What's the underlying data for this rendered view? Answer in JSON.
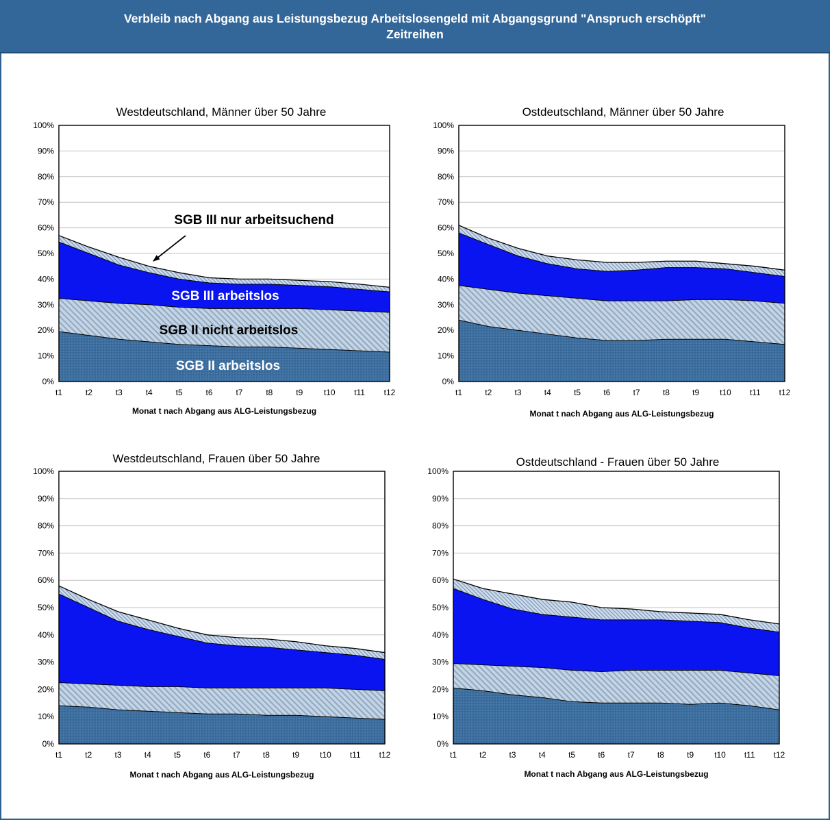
{
  "header": {
    "title_line1": "Verbleib nach Abgang aus Leistungsbezug Arbeitslosengeld mit Abgangsgrund \"Anspruch erschöpft\"",
    "title_line2": "Zeitreihen"
  },
  "colors": {
    "header_bg": "#336699",
    "sgb2_arbeitslos": "#3a6d9e",
    "sgb2_nicht_arbeitslos": "#b3c6d9",
    "sgb3_arbeitslos": "#0a14f0",
    "sgb3_nur_arbeitsuchend": "#b8cbe0"
  },
  "annotations": {
    "sgb3_nur_arbeitsuchend": "SGB III nur arbeitsuchend",
    "sgb3_arbeitslos": "SGB III arbeitslos",
    "sgb2_nicht_arbeitslos": "SGB II nicht arbeitslos",
    "sgb2_arbeitslos": "SGB II arbeitslos"
  },
  "chart_data": [
    {
      "type": "area",
      "stacked": true,
      "title": "Westdeutschland, Männer über 50 Jahre",
      "xlabel": "Monat t nach Abgang aus ALG-Leistungsbezug",
      "categories": [
        "t1",
        "t2",
        "t3",
        "t4",
        "t5",
        "t6",
        "t7",
        "t8",
        "t9",
        "t10",
        "t11",
        "t12"
      ],
      "yticks": [
        "0%",
        "10%",
        "20%",
        "30%",
        "40%",
        "50%",
        "60%",
        "70%",
        "80%",
        "90%",
        "100%"
      ],
      "ylim": [
        0,
        100
      ],
      "series": [
        {
          "name": "SGB II arbeitslos",
          "values": [
            19.5,
            18,
            16.5,
            15.5,
            14.5,
            14,
            13.5,
            13.5,
            13,
            12.5,
            12,
            11.5
          ]
        },
        {
          "name": "SGB II nicht arbeitslos",
          "values": [
            13,
            13.5,
            14,
            14.5,
            14.5,
            14.5,
            15,
            15,
            15.5,
            15.5,
            15.5,
            15.5
          ]
        },
        {
          "name": "SGB III arbeitslos",
          "values": [
            22,
            18.5,
            15,
            12.5,
            11,
            10,
            9.5,
            9.5,
            9,
            9,
            8.5,
            8
          ]
        },
        {
          "name": "SGB III nur arbeitsuchend",
          "values": [
            2.5,
            2.5,
            3,
            2.5,
            2.5,
            2,
            2,
            2,
            2,
            2,
            2,
            1.8
          ]
        }
      ],
      "labels_shown": true
    },
    {
      "type": "area",
      "stacked": true,
      "title": "Ostdeutschland, Männer über 50 Jahre",
      "xlabel": "Monat t nach Abgang aus ALG-Leistungsbezug",
      "categories": [
        "t1",
        "t2",
        "t3",
        "t4",
        "t5",
        "t6",
        "t7",
        "t8",
        "t9",
        "t10",
        "t11",
        "t12"
      ],
      "yticks": [
        "0%",
        "10%",
        "20%",
        "30%",
        "40%",
        "50%",
        "60%",
        "70%",
        "80%",
        "90%",
        "100%"
      ],
      "ylim": [
        0,
        100
      ],
      "series": [
        {
          "name": "SGB II arbeitslos",
          "values": [
            24,
            21.5,
            20,
            18.5,
            17,
            16,
            16,
            16.5,
            16.5,
            16.5,
            15.5,
            14.5
          ]
        },
        {
          "name": "SGB II nicht arbeitslos",
          "values": [
            13.5,
            14.5,
            14.5,
            15,
            15.5,
            15.5,
            15.5,
            15,
            15.5,
            15.5,
            16,
            16
          ]
        },
        {
          "name": "SGB III arbeitslos",
          "values": [
            20.5,
            17.5,
            14.5,
            12.5,
            11.5,
            11.5,
            12,
            13,
            12.5,
            12,
            11,
            10.5
          ]
        },
        {
          "name": "SGB III nur arbeitsuchend",
          "values": [
            3,
            2.5,
            3,
            3,
            3.5,
            3.5,
            3,
            2.5,
            2.5,
            2,
            2.5,
            2.5
          ]
        }
      ],
      "labels_shown": false
    },
    {
      "type": "area",
      "stacked": true,
      "title": "Westdeutschland, Frauen über 50 Jahre",
      "xlabel": "Monat t nach Abgang aus ALG-Leistungsbezug",
      "categories": [
        "t1",
        "t2",
        "t3",
        "t4",
        "t5",
        "t6",
        "t7",
        "t8",
        "t9",
        "t10",
        "t11",
        "t12"
      ],
      "yticks": [
        "0%",
        "10%",
        "20%",
        "30%",
        "40%",
        "50%",
        "60%",
        "70%",
        "80%",
        "90%",
        "100%"
      ],
      "ylim": [
        0,
        100
      ],
      "series": [
        {
          "name": "SGB II arbeitslos",
          "values": [
            14,
            13.5,
            12.5,
            12,
            11.5,
            11,
            11,
            10.5,
            10.5,
            10,
            9.5,
            9
          ]
        },
        {
          "name": "SGB II nicht arbeitslos",
          "values": [
            8.5,
            8.5,
            9,
            9,
            9.5,
            9.5,
            9.5,
            10,
            10,
            10.5,
            10.5,
            10.5
          ]
        },
        {
          "name": "SGB III arbeitslos",
          "values": [
            32.5,
            28,
            23.5,
            21,
            18.5,
            16.5,
            15.5,
            15,
            14,
            13,
            12.5,
            11.5
          ]
        },
        {
          "name": "SGB III nur arbeitsuchend",
          "values": [
            3,
            3,
            3.5,
            3.5,
            3,
            3,
            3,
            3,
            3,
            2.5,
            2.5,
            2.5
          ]
        }
      ],
      "labels_shown": false
    },
    {
      "type": "area",
      "stacked": true,
      "title": "Ostdeutschland - Frauen über 50 Jahre",
      "xlabel": "Monat t nach Abgang aus ALG-Leistungsbezug",
      "categories": [
        "t1",
        "t2",
        "t3",
        "t4",
        "t5",
        "t6",
        "t7",
        "t8",
        "t9",
        "t10",
        "t11",
        "t12"
      ],
      "yticks": [
        "0%",
        "10%",
        "20%",
        "30%",
        "40%",
        "50%",
        "60%",
        "70%",
        "80%",
        "90%",
        "100%"
      ],
      "ylim": [
        0,
        100
      ],
      "series": [
        {
          "name": "SGB II arbeitslos",
          "values": [
            20.5,
            19.5,
            18,
            17,
            15.5,
            15,
            15,
            15,
            14.5,
            15,
            14,
            12.5
          ]
        },
        {
          "name": "SGB II nicht arbeitslos",
          "values": [
            9,
            9.5,
            10.5,
            11,
            11.5,
            11.5,
            12,
            12,
            12.5,
            12,
            12,
            12.5
          ]
        },
        {
          "name": "SGB III arbeitslos",
          "values": [
            27.5,
            24,
            21,
            19.5,
            19.5,
            19,
            18.5,
            18.5,
            18,
            17.5,
            16.5,
            16
          ]
        },
        {
          "name": "SGB III nur arbeitsuchend",
          "values": [
            3.5,
            4,
            5.5,
            5.5,
            5.5,
            4.5,
            4,
            3,
            3,
            3,
            3,
            3
          ]
        }
      ],
      "labels_shown": false
    }
  ]
}
